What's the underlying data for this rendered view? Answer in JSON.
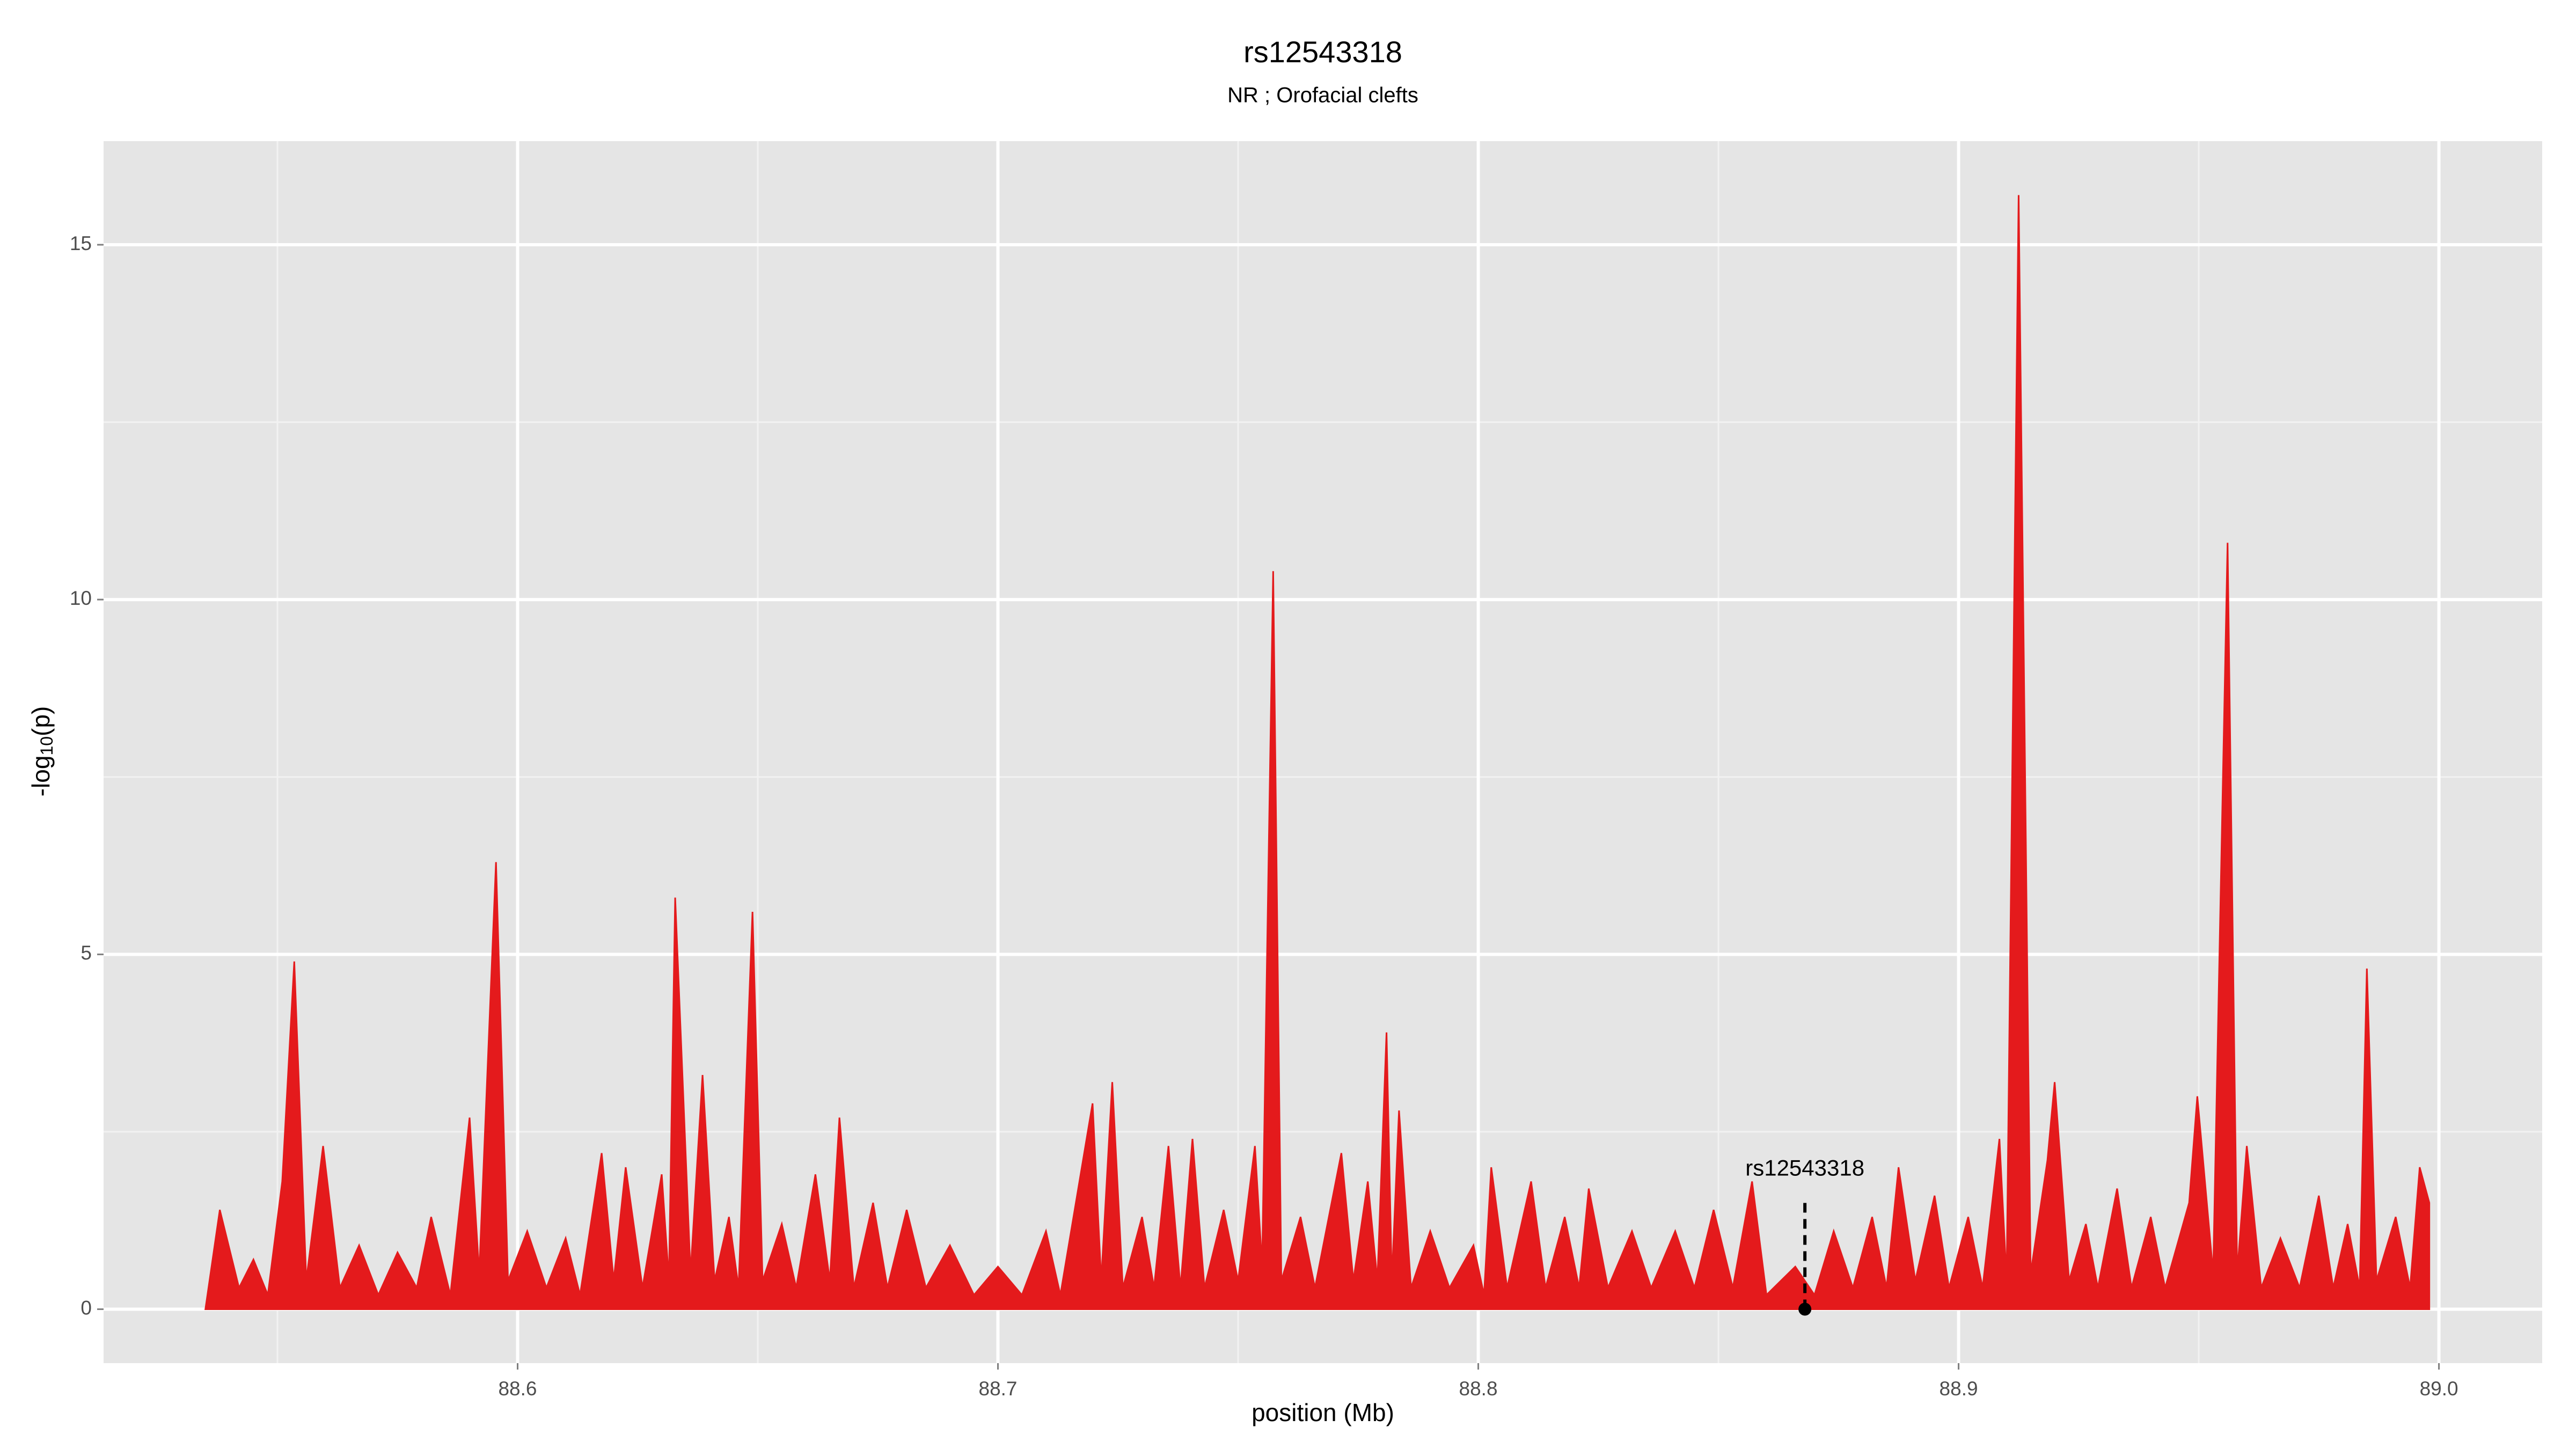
{
  "chart_data": {
    "type": "area",
    "title": "rs12543318",
    "subtitle": "NR ; Orofacial clefts",
    "xlabel": "position (Mb)",
    "ylabel_parts": [
      "-log",
      "10",
      "(p)"
    ],
    "xlim": [
      88.5138,
      89.0215
    ],
    "ylim": [
      -0.76,
      16.46
    ],
    "xticks": [
      88.6,
      88.7,
      88.8,
      88.9,
      {
        "value": 89,
        "label": "89.0"
      }
    ],
    "yticks": [
      0,
      5,
      10,
      15
    ],
    "x_minor_ticks": [
      88.55,
      88.65,
      88.75,
      88.85,
      88.95
    ],
    "y_minor_ticks": [
      2.5,
      7.5,
      12.5
    ],
    "grid": true,
    "x": [
      88.535,
      88.538,
      88.542,
      88.545,
      88.548,
      88.551,
      88.5535,
      88.556,
      88.5595,
      88.563,
      88.567,
      88.571,
      88.575,
      88.579,
      88.582,
      88.586,
      88.59,
      88.592,
      88.5955,
      88.598,
      88.602,
      88.606,
      88.61,
      88.613,
      88.6175,
      88.62,
      88.6225,
      88.626,
      88.63,
      88.6315,
      88.6328,
      88.636,
      88.6385,
      88.641,
      88.644,
      88.646,
      88.6489,
      88.651,
      88.655,
      88.658,
      88.662,
      88.665,
      88.667,
      88.67,
      88.674,
      88.677,
      88.681,
      88.685,
      88.69,
      88.695,
      88.7,
      88.705,
      88.71,
      88.713,
      88.7197,
      88.7215,
      88.7238,
      88.726,
      88.73,
      88.7325,
      88.7355,
      88.738,
      88.7405,
      88.743,
      88.747,
      88.75,
      88.7535,
      88.755,
      88.7573,
      88.759,
      88.763,
      88.766,
      88.7715,
      88.774,
      88.777,
      88.779,
      88.7809,
      88.782,
      88.7835,
      88.786,
      88.79,
      88.794,
      88.799,
      88.8012,
      88.8027,
      88.806,
      88.811,
      88.814,
      88.818,
      88.821,
      88.823,
      88.827,
      88.832,
      88.836,
      88.841,
      88.845,
      88.849,
      88.853,
      88.857,
      88.86,
      88.866,
      88.87,
      88.874,
      88.878,
      88.882,
      88.885,
      88.8875,
      88.891,
      88.895,
      88.898,
      88.902,
      88.905,
      88.9085,
      88.91,
      88.9125,
      88.915,
      88.9185,
      88.92,
      88.923,
      88.9265,
      88.929,
      88.933,
      88.936,
      88.94,
      88.943,
      88.948,
      88.9497,
      88.953,
      88.956,
      88.958,
      88.96,
      88.963,
      88.967,
      88.971,
      88.975,
      88.978,
      88.981,
      88.9835,
      88.985,
      88.987,
      88.991,
      88.994,
      88.996,
      88.998
    ],
    "series": [
      {
        "color": "#e41a1c",
        "values": [
          0,
          1.4,
          0.3,
          0.7,
          0.2,
          1.8,
          4.9,
          0.4,
          2.3,
          0.3,
          0.9,
          0.2,
          0.8,
          0.3,
          1.3,
          0.2,
          2.7,
          0.5,
          6.3,
          0.4,
          1.1,
          0.3,
          1.0,
          0.2,
          2.2,
          0.4,
          2.0,
          0.3,
          1.9,
          0.4,
          5.8,
          0.5,
          3.3,
          0.4,
          1.3,
          0.3,
          5.6,
          0.4,
          1.2,
          0.3,
          1.9,
          0.4,
          2.7,
          0.3,
          1.5,
          0.3,
          1.4,
          0.3,
          0.9,
          0.2,
          0.6,
          0.2,
          1.1,
          0.2,
          2.9,
          0.4,
          3.2,
          0.3,
          1.3,
          0.3,
          2.3,
          0.3,
          2.4,
          0.3,
          1.4,
          0.4,
          2.3,
          0.6,
          10.4,
          0.4,
          1.3,
          0.3,
          2.2,
          0.4,
          1.8,
          0.4,
          3.9,
          0.4,
          2.8,
          0.3,
          1.1,
          0.3,
          0.9,
          0.2,
          2.0,
          0.3,
          1.8,
          0.3,
          1.3,
          0.3,
          1.7,
          0.3,
          1.1,
          0.3,
          1.1,
          0.3,
          1.4,
          0.3,
          1.8,
          0.2,
          0.6,
          0.2,
          1.1,
          0.3,
          1.3,
          0.3,
          2.0,
          0.4,
          1.6,
          0.3,
          1.3,
          0.3,
          2.4,
          0.4,
          15.7,
          0.5,
          2.1,
          3.2,
          0.4,
          1.2,
          0.3,
          1.7,
          0.3,
          1.3,
          0.3,
          1.5,
          3.0,
          0.5,
          10.8,
          0.5,
          2.3,
          0.3,
          1.0,
          0.3,
          1.6,
          0.3,
          1.2,
          0.3,
          4.8,
          0.4,
          1.3,
          0.3,
          2.0,
          1.5
        ]
      }
    ],
    "annotation": {
      "label": "rs12543318",
      "x": 88.868,
      "y": 0
    }
  }
}
